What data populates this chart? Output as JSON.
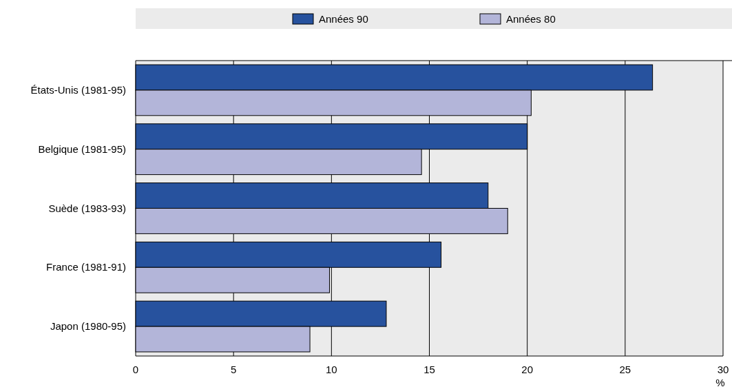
{
  "chart_data": {
    "type": "bar",
    "orientation": "horizontal",
    "categories": [
      "États-Unis (1981-95)",
      "Belgique (1981-95)",
      "Suède (1983-93)",
      "France (1981-91)",
      "Japon (1980-95)"
    ],
    "series": [
      {
        "name": "Années 90",
        "color": "#27529e",
        "values": [
          26.4,
          20.0,
          18.0,
          15.6,
          12.8
        ]
      },
      {
        "name": "Années 80",
        "color": "#b3b5d9",
        "values": [
          20.2,
          14.6,
          19.0,
          9.9,
          8.9
        ]
      }
    ],
    "xlabel": "%",
    "xlim": [
      0,
      30
    ],
    "xticks": [
      0,
      5,
      10,
      15,
      20,
      25,
      30
    ],
    "grid": "x",
    "legend": "top"
  }
}
